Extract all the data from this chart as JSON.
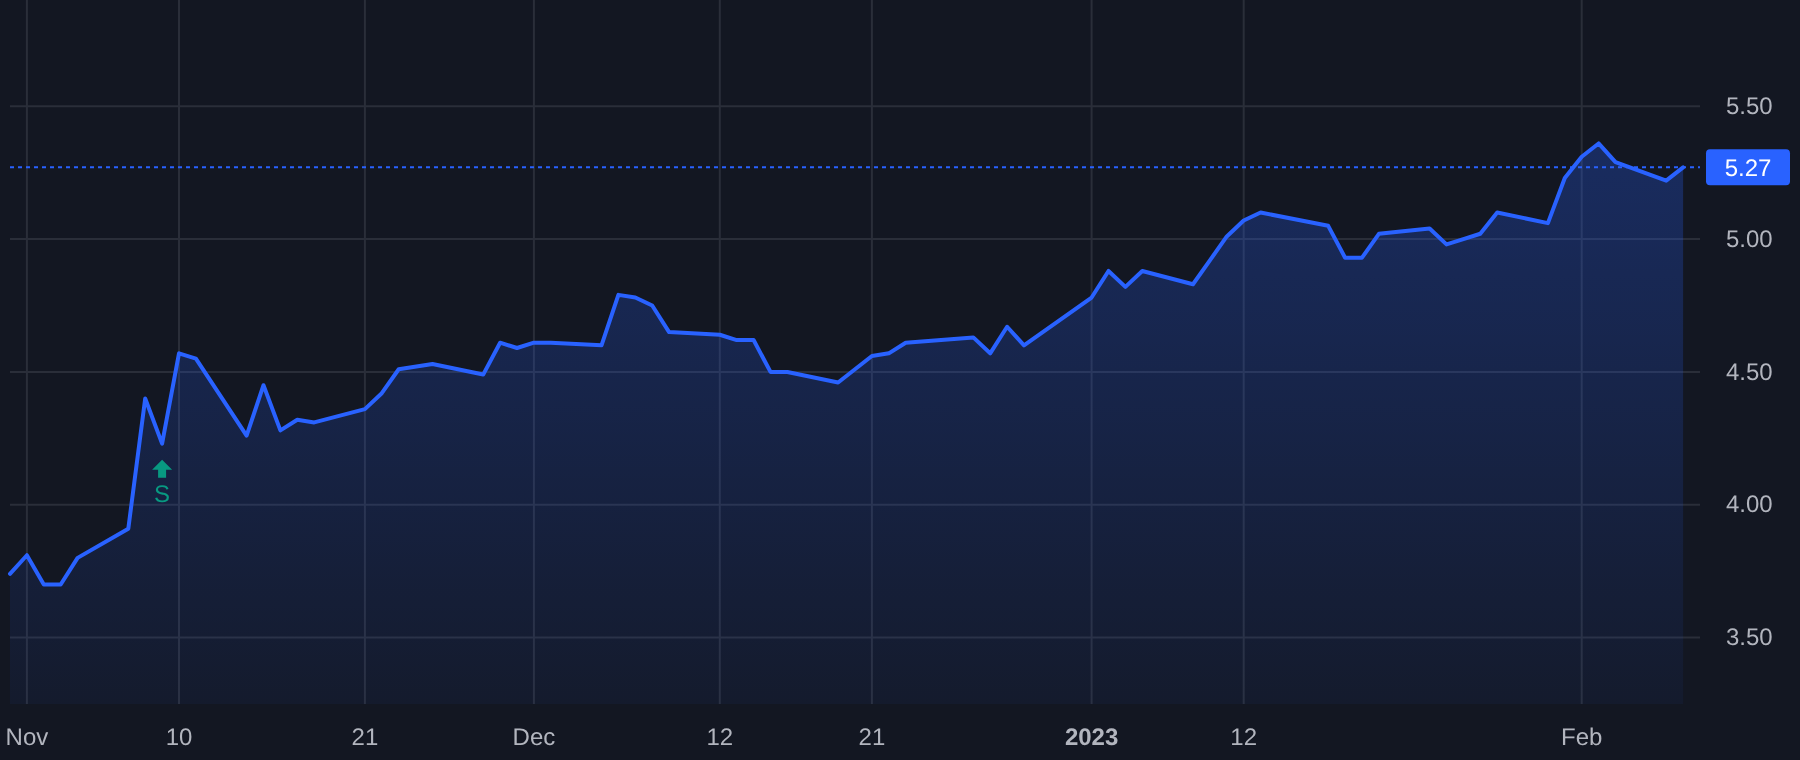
{
  "chart_data": {
    "type": "area",
    "x": [
      "2022-10-31",
      "2022-11-01",
      "2022-11-02",
      "2022-11-03",
      "2022-11-04",
      "2022-11-07",
      "2022-11-08",
      "2022-11-09",
      "2022-11-10",
      "2022-11-11",
      "2022-11-14",
      "2022-11-15",
      "2022-11-16",
      "2022-11-17",
      "2022-11-18",
      "2022-11-21",
      "2022-11-22",
      "2022-11-23",
      "2022-11-25",
      "2022-11-28",
      "2022-11-29",
      "2022-11-30",
      "2022-12-01",
      "2022-12-02",
      "2022-12-05",
      "2022-12-06",
      "2022-12-07",
      "2022-12-08",
      "2022-12-09",
      "2022-12-12",
      "2022-12-13",
      "2022-12-14",
      "2022-12-15",
      "2022-12-16",
      "2022-12-19",
      "2022-12-20",
      "2022-12-21",
      "2022-12-22",
      "2022-12-23",
      "2022-12-27",
      "2022-12-28",
      "2022-12-29",
      "2022-12-30",
      "2023-01-03",
      "2023-01-04",
      "2023-01-05",
      "2023-01-06",
      "2023-01-09",
      "2023-01-10",
      "2023-01-11",
      "2023-01-12",
      "2023-01-13",
      "2023-01-17",
      "2023-01-18",
      "2023-01-19",
      "2023-01-20",
      "2023-01-23",
      "2023-01-24",
      "2023-01-25",
      "2023-01-26",
      "2023-01-27",
      "2023-01-30",
      "2023-01-31",
      "2023-02-01",
      "2023-02-02",
      "2023-02-03",
      "2023-02-06",
      "2023-02-07"
    ],
    "series": [
      {
        "color": "#2962ff",
        "values": [
          3.74,
          3.81,
          3.7,
          3.7,
          3.8,
          3.91,
          4.4,
          4.23,
          4.57,
          4.55,
          4.26,
          4.45,
          4.28,
          4.32,
          4.31,
          4.36,
          4.42,
          4.51,
          4.53,
          4.49,
          4.61,
          4.59,
          4.61,
          4.61,
          4.6,
          4.79,
          4.78,
          4.75,
          4.65,
          4.64,
          4.62,
          4.62,
          4.5,
          4.5,
          4.46,
          4.51,
          4.56,
          4.57,
          4.61,
          4.63,
          4.57,
          4.67,
          4.6,
          4.78,
          4.88,
          4.82,
          4.88,
          4.83,
          4.92,
          5.01,
          5.07,
          5.1,
          5.05,
          4.93,
          4.93,
          5.02,
          5.04,
          4.98,
          5.0,
          5.02,
          5.1,
          5.06,
          5.23,
          5.31,
          5.36,
          5.29,
          5.22,
          5.27
        ]
      }
    ],
    "xlim": [
      "2022-10-31",
      "2023-02-08"
    ],
    "ylim": [
      3.25,
      5.9
    ],
    "yticks": [
      {
        "value": 3.5,
        "label": "3.50"
      },
      {
        "value": 4,
        "label": "4.00"
      },
      {
        "value": 4.5,
        "label": "4.50"
      },
      {
        "value": 5,
        "label": "5.00"
      },
      {
        "value": 5.5,
        "label": "5.50"
      }
    ],
    "xticks": [
      {
        "value": "2022-11-01",
        "label": "Nov"
      },
      {
        "value": "2022-11-10",
        "label": "10"
      },
      {
        "value": "2022-11-21",
        "label": "21"
      },
      {
        "value": "2022-12-01",
        "label": "Dec"
      },
      {
        "value": "2022-12-12",
        "label": "12"
      },
      {
        "value": "2022-12-21",
        "label": "21"
      },
      {
        "value": "2023-01-03",
        "label": "2023"
      },
      {
        "value": "2023-01-12",
        "label": "12"
      },
      {
        "value": "2023-02-01",
        "label": "Feb"
      }
    ],
    "ref_lines": [
      {
        "axis": "y",
        "value": 5.27,
        "label": "5.27",
        "color": "#2962ff",
        "line_style": "dotted"
      }
    ],
    "annotations": [
      {
        "text": "S",
        "x": "2022-11-09",
        "y": 4.23
      }
    ],
    "grid": true
  }
}
